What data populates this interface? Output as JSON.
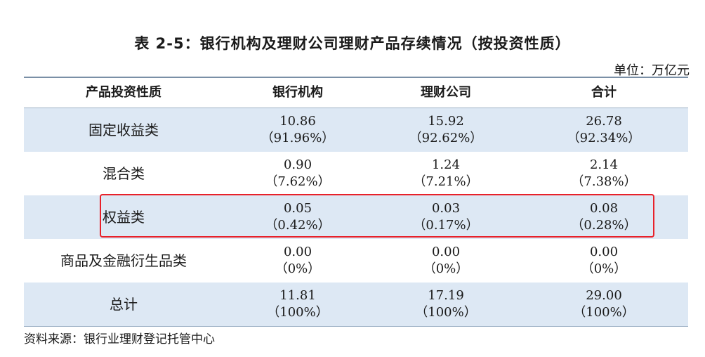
{
  "title": "表 2-5：银行机构及理财公司理财产品存续情况（按投资性质）",
  "unit": "单位：万亿元",
  "headers": [
    "产品投资性质",
    "银行机构",
    "理财公司",
    "合计"
  ],
  "rows": [
    {
      "name": "固定收益类",
      "bank": {
        "v": "10.86",
        "p": "（91.96%）"
      },
      "wm": {
        "v": "15.92",
        "p": "（92.62%）"
      },
      "total": {
        "v": "26.78",
        "p": "（92.34%）"
      }
    },
    {
      "name": "混合类",
      "bank": {
        "v": "0.90",
        "p": "（7.62%）"
      },
      "wm": {
        "v": "1.24",
        "p": "（7.21%）"
      },
      "total": {
        "v": "2.14",
        "p": "（7.38%）"
      }
    },
    {
      "name": "权益类",
      "bank": {
        "v": "0.05",
        "p": "（0.42%）"
      },
      "wm": {
        "v": "0.03",
        "p": "（0.17%）"
      },
      "total": {
        "v": "0.08",
        "p": "（0.28%）"
      }
    },
    {
      "name": "商品及金融衍生品类",
      "bank": {
        "v": "0.00",
        "p": "（0%）"
      },
      "wm": {
        "v": "0.00",
        "p": "（0%）"
      },
      "total": {
        "v": "0.00",
        "p": "（0%）"
      }
    },
    {
      "name": "总计",
      "bank": {
        "v": "11.81",
        "p": "（100%）"
      },
      "wm": {
        "v": "17.19",
        "p": "（100%）"
      },
      "total": {
        "v": "29.00",
        "p": "（100%）"
      }
    }
  ],
  "highlight_color": "#e8212a",
  "row_shade_color": "#dde8f4",
  "source": "资料来源：银行业理财登记托管中心"
}
